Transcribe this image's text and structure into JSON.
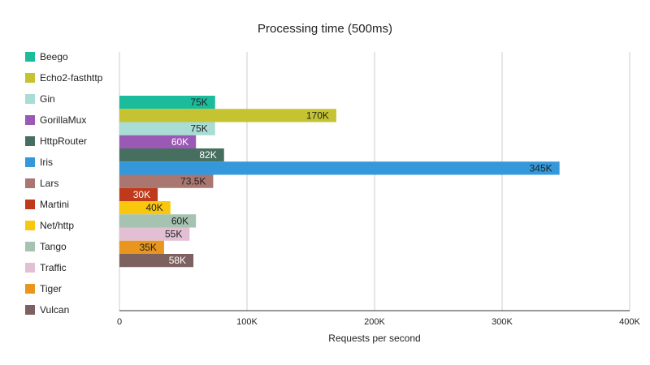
{
  "chart_data": {
    "type": "bar",
    "orientation": "horizontal",
    "title": "Processing time (500ms)",
    "xlabel": "Requests per second",
    "ylabel": "",
    "xlim": [
      0,
      400000
    ],
    "xticks": [
      0,
      100000,
      200000,
      300000,
      400000
    ],
    "xtick_labels": [
      "0",
      "100K",
      "200K",
      "300K",
      "400K"
    ],
    "grid": true,
    "legend_position": "left",
    "series": [
      {
        "name": "Beego",
        "value": 75000,
        "label": "75K",
        "color": "#1abc9c",
        "label_color": "#222222"
      },
      {
        "name": "Echo2-fasthttp",
        "value": 170000,
        "label": "170K",
        "color": "#c5c332",
        "label_color": "#222222"
      },
      {
        "name": "Gin",
        "value": 75000,
        "label": "75K",
        "color": "#a8dcd5",
        "label_color": "#222222"
      },
      {
        "name": "GorillaMux",
        "value": 60000,
        "label": "60K",
        "color": "#9b59b6",
        "label_color": "#ffffff"
      },
      {
        "name": "HttpRouter",
        "value": 82000,
        "label": "82K",
        "color": "#476f5f",
        "label_color": "#ffffff"
      },
      {
        "name": "Iris",
        "value": 345000,
        "label": "345K",
        "color": "#3498db",
        "label_color": "#222222"
      },
      {
        "name": "Lars",
        "value": 73500,
        "label": "73.5K",
        "color": "#a97670",
        "label_color": "#222222"
      },
      {
        "name": "Martini",
        "value": 30000,
        "label": "30K",
        "color": "#c0391b",
        "label_color": "#ffffff"
      },
      {
        "name": "Net/http",
        "value": 40000,
        "label": "40K",
        "color": "#f9c80e",
        "label_color": "#222222"
      },
      {
        "name": "Tango",
        "value": 60000,
        "label": "60K",
        "color": "#a5c3b0",
        "label_color": "#222222"
      },
      {
        "name": "Traffic",
        "value": 55000,
        "label": "55K",
        "color": "#e2bfd2",
        "label_color": "#222222"
      },
      {
        "name": "Tiger",
        "value": 35000,
        "label": "35K",
        "color": "#e8961e",
        "label_color": "#222222"
      },
      {
        "name": "Vulcan",
        "value": 58000,
        "label": "58K",
        "color": "#7d6060",
        "label_color": "#ffffff"
      }
    ]
  }
}
